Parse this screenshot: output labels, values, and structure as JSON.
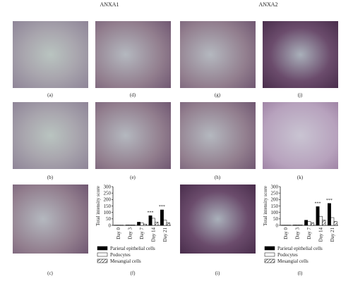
{
  "titles": [
    "ANXA1",
    "ANXA2"
  ],
  "panel_labels": [
    "(a)",
    "(b)",
    "(c)",
    "(d)",
    "(e)",
    "(f)",
    "(g)",
    "(h)",
    "(i)",
    "(j)",
    "(k)",
    "(l)"
  ],
  "chart_data": [
    {
      "type": "bar",
      "ylabel": "Total intensity score",
      "categories": [
        "Day 0",
        "Day 3",
        "Day 7",
        "Day 14",
        "Day 21"
      ],
      "series": [
        {
          "name": "Parietal epithelial cells",
          "color": "#000000",
          "values": [
            2,
            3,
            25,
            75,
            120
          ],
          "annotations": [
            null,
            null,
            null,
            "***",
            "***"
          ]
        },
        {
          "name": "Podocytes",
          "color": "#ffffff",
          "values": [
            2,
            3,
            20,
            55,
            40
          ]
        },
        {
          "name": "Mesangial cells",
          "color": "#ffffff",
          "hatch": true,
          "values": [
            2,
            3,
            10,
            25,
            20
          ]
        }
      ],
      "ylim": [
        0,
        300
      ],
      "yticks": [
        0,
        50,
        100,
        150,
        200,
        250,
        300
      ]
    },
    {
      "type": "bar",
      "ylabel": "Total intensity score",
      "categories": [
        "Day 0",
        "Day 3",
        "Day 7",
        "Day 14",
        "Day 21"
      ],
      "series": [
        {
          "name": "Parietal epithelial cells",
          "color": "#000000",
          "values": [
            2,
            3,
            40,
            145,
            170
          ],
          "annotations": [
            null,
            null,
            null,
            "***",
            "***"
          ]
        },
        {
          "name": "Podocytes",
          "color": "#ffffff",
          "values": [
            2,
            3,
            30,
            70,
            60
          ]
        },
        {
          "name": "Mesangial cells",
          "color": "#ffffff",
          "hatch": true,
          "values": [
            2,
            3,
            20,
            40,
            30
          ]
        }
      ],
      "ylim": [
        0,
        300
      ],
      "yticks": [
        0,
        50,
        100,
        150,
        200,
        250,
        300
      ]
    }
  ]
}
